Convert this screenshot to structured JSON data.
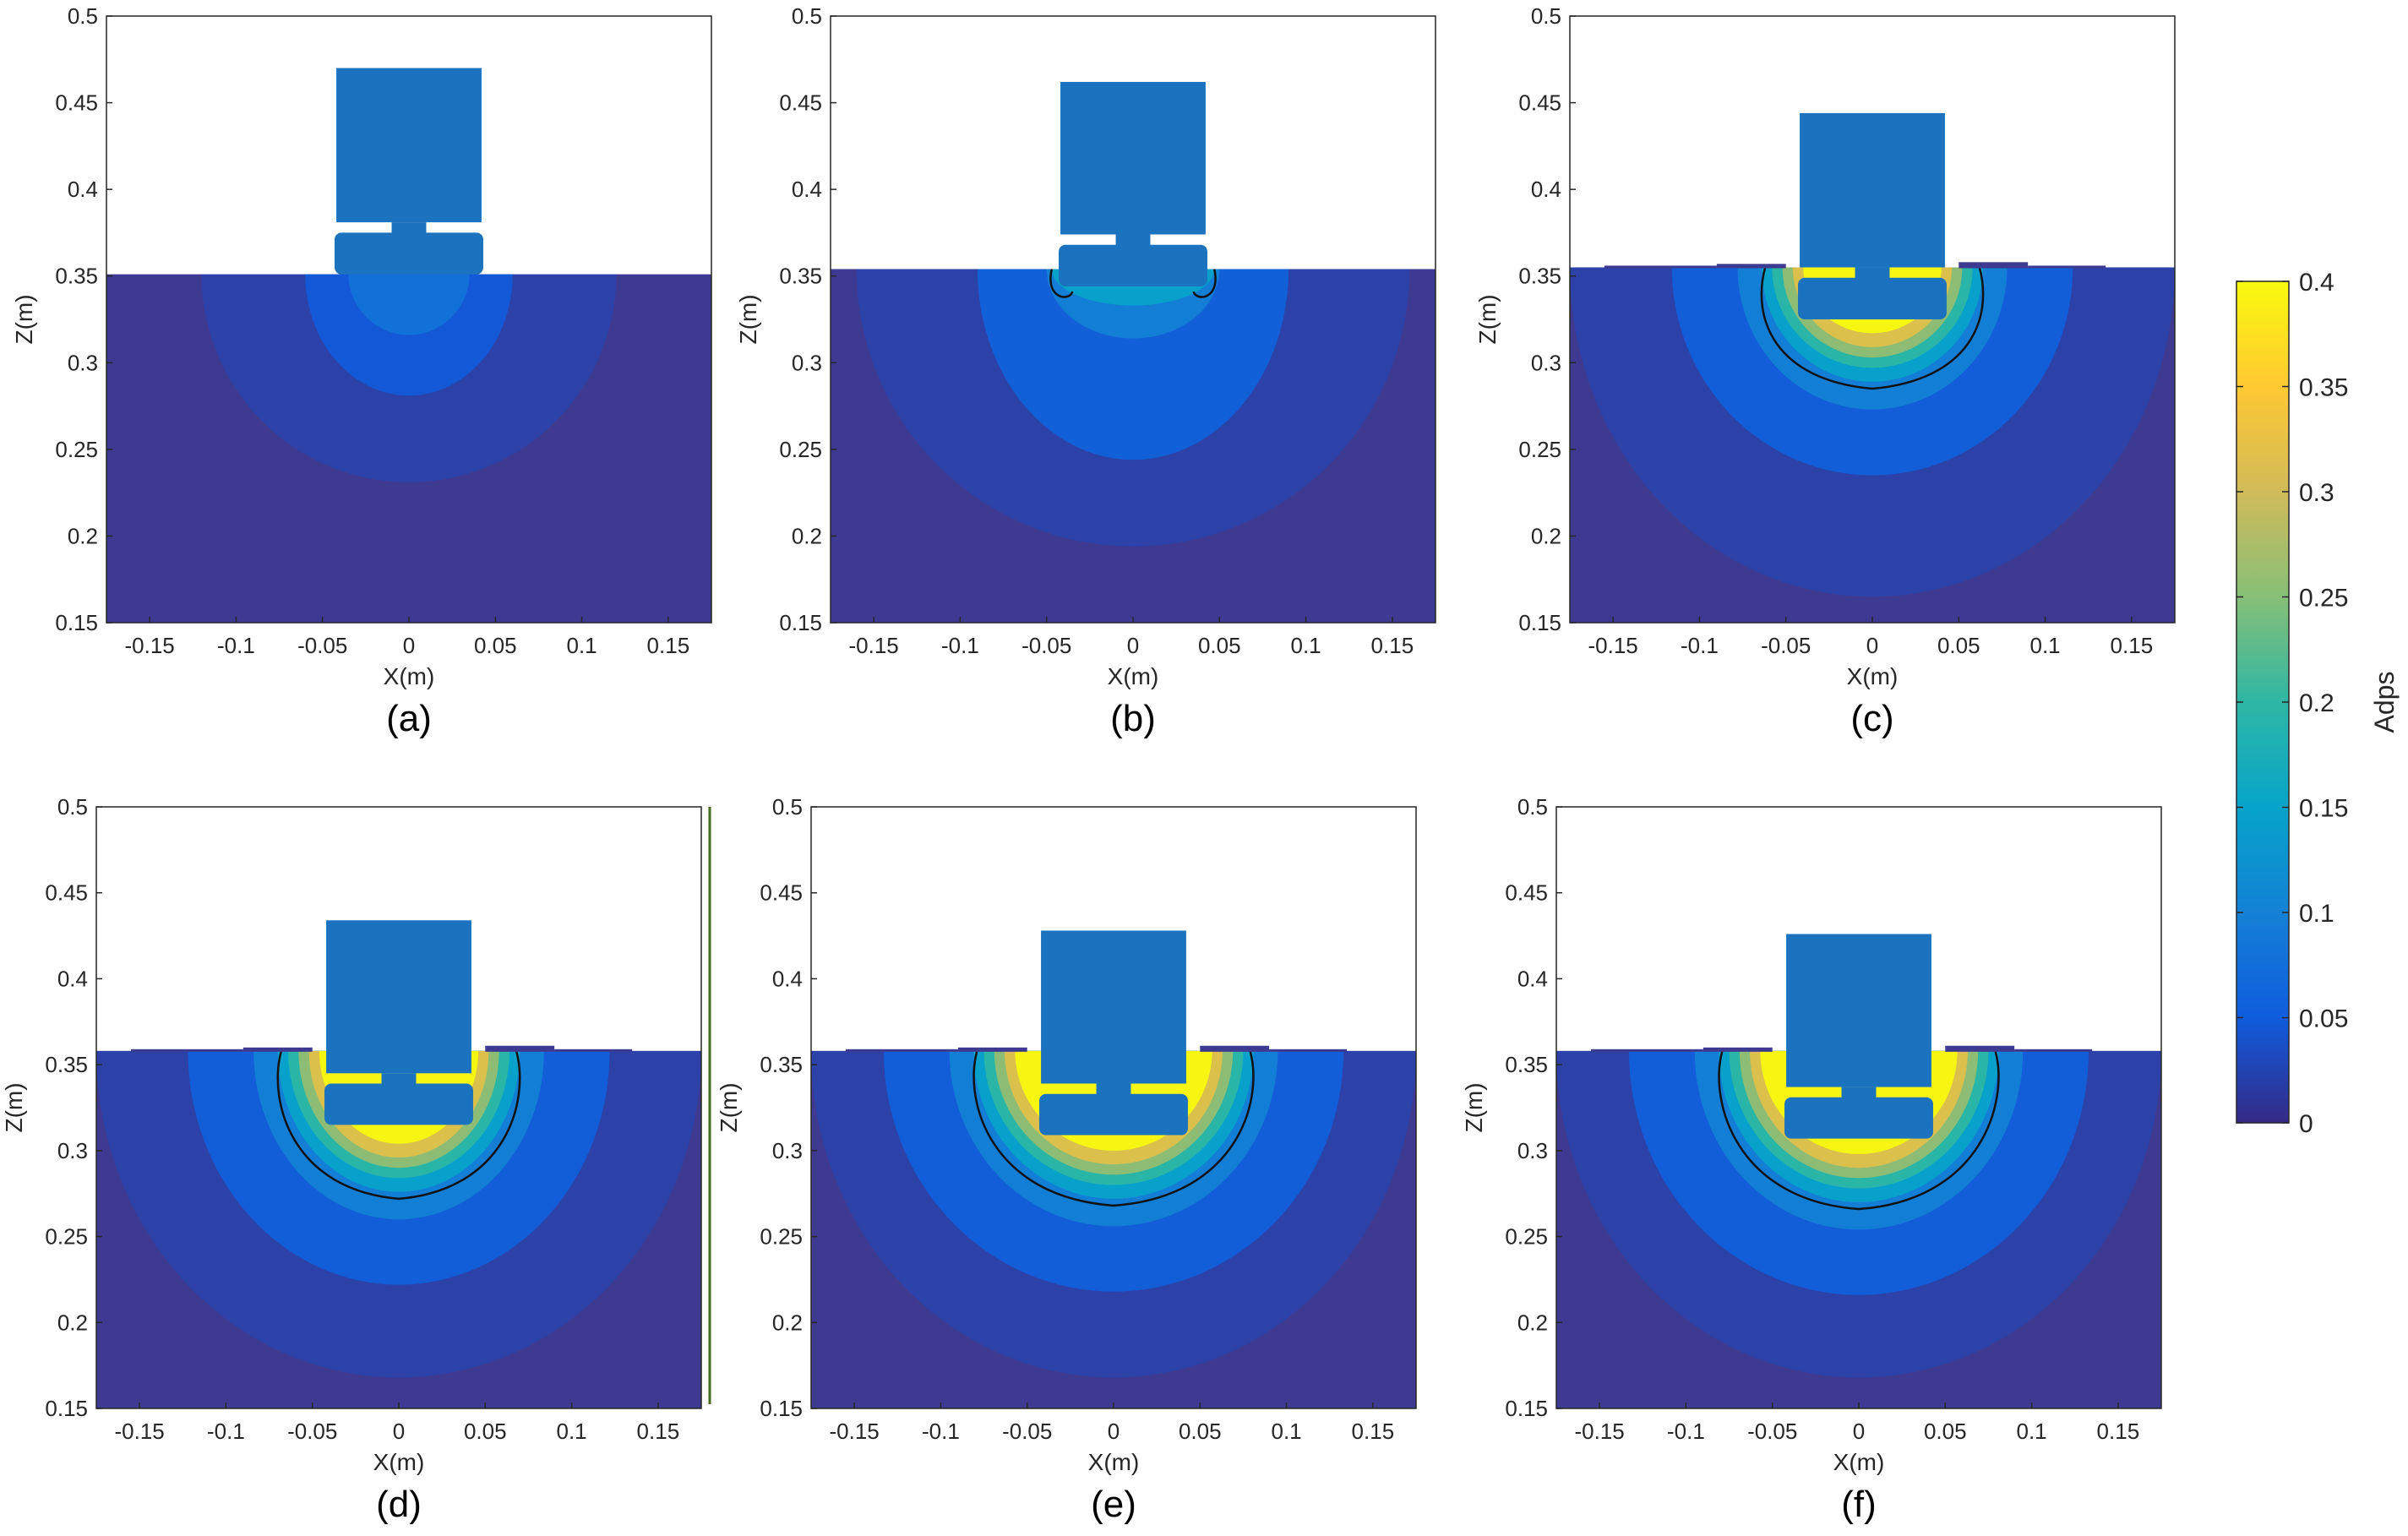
{
  "chart_data": [
    {
      "type": "heatmap",
      "caption": "(a)",
      "xlabel": "X(m)",
      "ylabel": "Z(m)",
      "xlim": [
        -0.175,
        0.175
      ],
      "ylim": [
        0.15,
        0.5
      ],
      "xticks": [
        "-0.15",
        "-0.1",
        "-0.05",
        "0",
        "0.05",
        "0.1",
        "0.15"
      ],
      "yticks": [
        "0.15",
        "0.2",
        "0.25",
        "0.3",
        "0.35",
        "0.4",
        "0.45",
        "0.5"
      ],
      "soil_surface_z": 0.351,
      "probe": {
        "xmin": -0.042,
        "xmax": 0.042,
        "ztop": 0.47,
        "zbottom": 0.351
      },
      "max_adps": 0.08,
      "contour": null
    },
    {
      "type": "heatmap",
      "caption": "(b)",
      "xlabel": "X(m)",
      "ylabel": "Z(m)",
      "xlim": [
        -0.175,
        0.175
      ],
      "ylim": [
        0.15,
        0.5
      ],
      "xticks": [
        "-0.15",
        "-0.1",
        "-0.05",
        "0",
        "0.05",
        "0.1",
        "0.15"
      ],
      "yticks": [
        "0.15",
        "0.2",
        "0.25",
        "0.3",
        "0.35",
        "0.4",
        "0.45",
        "0.5"
      ],
      "soil_surface_z": 0.354,
      "probe": {
        "xmin": -0.042,
        "xmax": 0.042,
        "ztop": 0.462,
        "zbottom": 0.344
      },
      "max_adps": 0.15,
      "contour": {
        "half_width": 0.047,
        "bottom_z": 0.337,
        "type": "partial"
      }
    },
    {
      "type": "heatmap",
      "caption": "(c)",
      "xlabel": "X(m)",
      "ylabel": "Z(m)",
      "xlim": [
        -0.175,
        0.175
      ],
      "ylim": [
        0.15,
        0.5
      ],
      "xticks": [
        "-0.15",
        "-0.1",
        "-0.05",
        "0",
        "0.05",
        "0.1",
        "0.15"
      ],
      "yticks": [
        "0.15",
        "0.2",
        "0.25",
        "0.3",
        "0.35",
        "0.4",
        "0.45",
        "0.5"
      ],
      "soil_surface_z": 0.355,
      "probe": {
        "xmin": -0.042,
        "xmax": 0.042,
        "ztop": 0.444,
        "zbottom": 0.325
      },
      "max_adps": 0.4,
      "contour": {
        "half_width": 0.066,
        "bottom_z": 0.285,
        "type": "closed"
      }
    },
    {
      "type": "heatmap",
      "caption": "(d)",
      "xlabel": "X(m)",
      "ylabel": "Z(m)",
      "xlim": [
        -0.175,
        0.175
      ],
      "ylim": [
        0.15,
        0.5
      ],
      "xticks": [
        "-0.15",
        "-0.1",
        "-0.05",
        "0",
        "0.05",
        "0.1",
        "0.15"
      ],
      "yticks": [
        "0.15",
        "0.2",
        "0.25",
        "0.3",
        "0.35",
        "0.4",
        "0.45",
        "0.5"
      ],
      "soil_surface_z": 0.358,
      "probe": {
        "xmin": -0.042,
        "xmax": 0.042,
        "ztop": 0.434,
        "zbottom": 0.315
      },
      "max_adps": 0.4,
      "contour": {
        "half_width": 0.072,
        "bottom_z": 0.272,
        "type": "closed"
      }
    },
    {
      "type": "heatmap",
      "caption": "(e)",
      "xlabel": "X(m)",
      "ylabel": "Z(m)",
      "xlim": [
        -0.175,
        0.175
      ],
      "ylim": [
        0.15,
        0.5
      ],
      "xticks": [
        "-0.15",
        "-0.1",
        "-0.05",
        "0",
        "0.05",
        "0.1",
        "0.15"
      ],
      "yticks": [
        "0.15",
        "0.2",
        "0.25",
        "0.3",
        "0.35",
        "0.4",
        "0.45",
        "0.5"
      ],
      "soil_surface_z": 0.358,
      "probe": {
        "xmin": -0.042,
        "xmax": 0.042,
        "ztop": 0.428,
        "zbottom": 0.309
      },
      "max_adps": 0.4,
      "contour": {
        "half_width": 0.083,
        "bottom_z": 0.268,
        "type": "closed"
      }
    },
    {
      "type": "heatmap",
      "caption": "(f)",
      "xlabel": "X(m)",
      "ylabel": "Z(m)",
      "xlim": [
        -0.175,
        0.175
      ],
      "ylim": [
        0.15,
        0.5
      ],
      "xticks": [
        "-0.15",
        "-0.1",
        "-0.05",
        "0",
        "0.05",
        "0.1",
        "0.15"
      ],
      "yticks": [
        "0.15",
        "0.2",
        "0.25",
        "0.3",
        "0.35",
        "0.4",
        "0.45",
        "0.5"
      ],
      "soil_surface_z": 0.358,
      "probe": {
        "xmin": -0.042,
        "xmax": 0.042,
        "ztop": 0.426,
        "zbottom": 0.307
      },
      "max_adps": 0.4,
      "contour": {
        "half_width": 0.083,
        "bottom_z": 0.266,
        "type": "closed"
      }
    }
  ],
  "colorbar": {
    "label": "Adps",
    "range": [
      0,
      0.4
    ],
    "ticks": [
      "0",
      "0.05",
      "0.1",
      "0.15",
      "0.2",
      "0.25",
      "0.3",
      "0.35",
      "0.4"
    ],
    "colormap": "parula"
  },
  "colors": {
    "soil_background": "#3e3a91",
    "probe": "#1b72be",
    "contour": "#111111"
  }
}
